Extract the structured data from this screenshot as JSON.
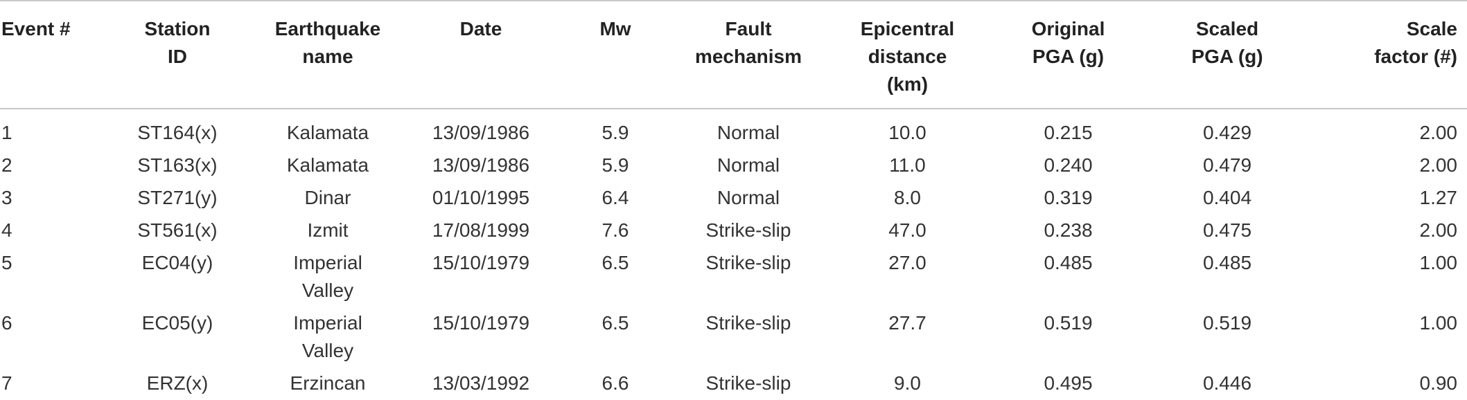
{
  "table": {
    "headers": [
      "Event #",
      "Station ID",
      "Earthquake name",
      "Date",
      "Mw",
      "Fault mechanism",
      "Epicentral distance (km)",
      "Original PGA (g)",
      "Scaled PGA (g)",
      "Scale factor (#)"
    ],
    "header_lines": [
      [
        "Event #"
      ],
      [
        "Station",
        "ID"
      ],
      [
        "Earthquake",
        "name"
      ],
      [
        "Date"
      ],
      [
        "Mw"
      ],
      [
        "Fault",
        "mechanism"
      ],
      [
        "Epicentral",
        "distance",
        "(km)"
      ],
      [
        "Original",
        "PGA (g)"
      ],
      [
        "Scaled",
        "PGA (g)"
      ],
      [
        "Scale",
        "factor (#)"
      ]
    ],
    "rows": [
      [
        [
          "1"
        ],
        [
          "ST164(x)"
        ],
        [
          "Kalamata"
        ],
        [
          "13/09/1986"
        ],
        [
          "5.9"
        ],
        [
          "Normal"
        ],
        [
          "10.0"
        ],
        [
          "0.215"
        ],
        [
          "0.429"
        ],
        [
          "2.00"
        ]
      ],
      [
        [
          "2"
        ],
        [
          "ST163(x)"
        ],
        [
          "Kalamata"
        ],
        [
          "13/09/1986"
        ],
        [
          "5.9"
        ],
        [
          "Normal"
        ],
        [
          "11.0"
        ],
        [
          "0.240"
        ],
        [
          "0.479"
        ],
        [
          "2.00"
        ]
      ],
      [
        [
          "3"
        ],
        [
          "ST271(y)"
        ],
        [
          "Dinar"
        ],
        [
          "01/10/1995"
        ],
        [
          "6.4"
        ],
        [
          "Normal"
        ],
        [
          "8.0"
        ],
        [
          "0.319"
        ],
        [
          "0.404"
        ],
        [
          "1.27"
        ]
      ],
      [
        [
          "4"
        ],
        [
          "ST561(x)"
        ],
        [
          "Izmit"
        ],
        [
          "17/08/1999"
        ],
        [
          "7.6"
        ],
        [
          "Strike-slip"
        ],
        [
          "47.0"
        ],
        [
          "0.238"
        ],
        [
          "0.475"
        ],
        [
          "2.00"
        ]
      ],
      [
        [
          "5"
        ],
        [
          "EC04(y)"
        ],
        [
          "Imperial",
          "Valley"
        ],
        [
          "15/10/1979"
        ],
        [
          "6.5"
        ],
        [
          "Strike-slip"
        ],
        [
          "27.0"
        ],
        [
          "0.485"
        ],
        [
          "0.485"
        ],
        [
          "1.00"
        ]
      ],
      [
        [
          "6"
        ],
        [
          "EC05(y)"
        ],
        [
          "Imperial",
          "Valley"
        ],
        [
          "15/10/1979"
        ],
        [
          "6.5"
        ],
        [
          "Strike-slip"
        ],
        [
          "27.7"
        ],
        [
          "0.519"
        ],
        [
          "0.519"
        ],
        [
          "1.00"
        ]
      ],
      [
        [
          "7"
        ],
        [
          "ERZ(x)"
        ],
        [
          "Erzincan"
        ],
        [
          "13/03/1992"
        ],
        [
          "6.6"
        ],
        [
          "Strike-slip"
        ],
        [
          "9.0"
        ],
        [
          "0.495"
        ],
        [
          "0.446"
        ],
        [
          "0.90"
        ]
      ]
    ]
  }
}
